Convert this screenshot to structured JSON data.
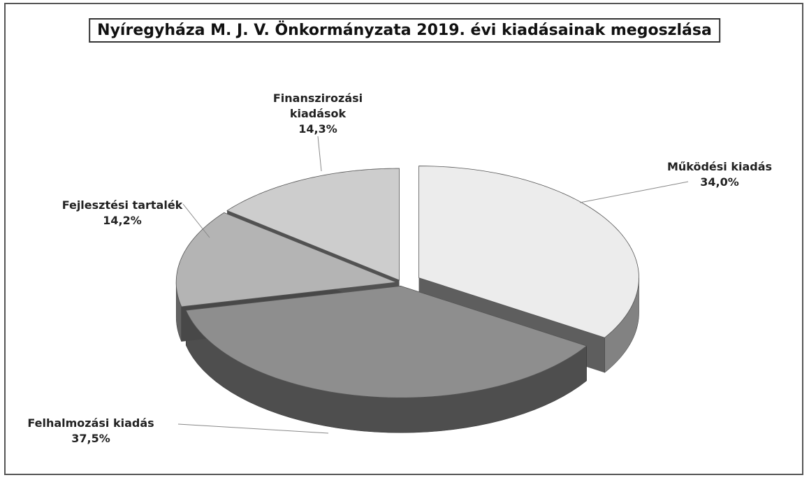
{
  "chart_data": {
    "type": "pie",
    "title": "Nyíregyháza M. J. V. Önkormányzata 2019. évi kiadásainak megoszlása",
    "categories": [
      "Működési kiadás",
      "Felhalmozási kiadás",
      "Fejlesztési tartalék",
      "Finanszirozási kiadások"
    ],
    "values": [
      34.0,
      37.5,
      14.2,
      14.3
    ],
    "value_labels": [
      "34,0%",
      "37,5%",
      "14,2%",
      "14,3%"
    ],
    "colors": [
      "#ececec",
      "#8e8e8e",
      "#b4b4b4",
      "#cdcdcd"
    ]
  }
}
